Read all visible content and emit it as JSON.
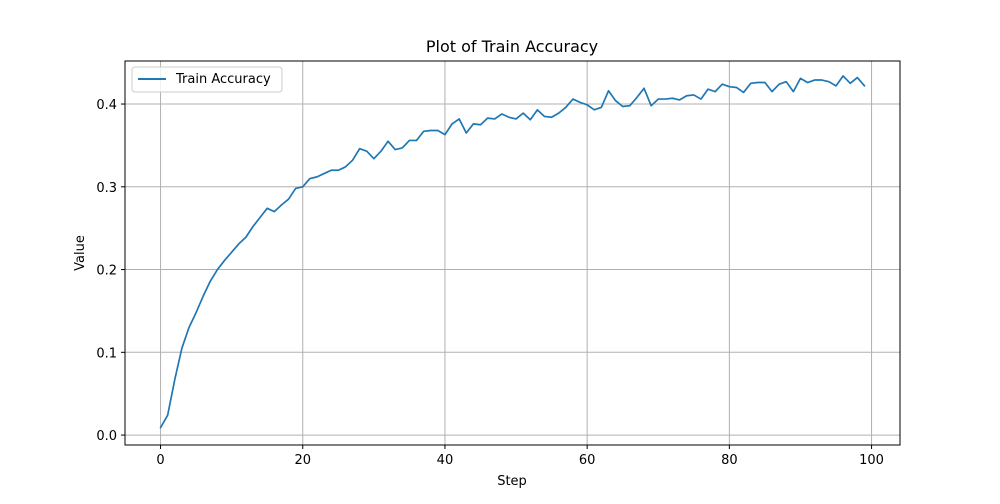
{
  "chart_data": {
    "type": "line",
    "title": "Plot of Train Accuracy",
    "xlabel": "Step",
    "ylabel": "Value",
    "xlim": [
      -5,
      104
    ],
    "ylim": [
      -0.012,
      0.452
    ],
    "xticks": [
      0,
      20,
      40,
      60,
      80,
      100
    ],
    "xtick_labels": [
      "0",
      "20",
      "40",
      "60",
      "80",
      "100"
    ],
    "yticks": [
      0.0,
      0.1,
      0.2,
      0.3,
      0.4
    ],
    "ytick_labels": [
      "0.0",
      "0.1",
      "0.2",
      "0.3",
      "0.4"
    ],
    "grid": true,
    "legend_position": "top-left",
    "series": [
      {
        "name": "Train Accuracy",
        "color": "#1f77b4",
        "x": [
          0,
          1,
          2,
          3,
          4,
          5,
          6,
          7,
          8,
          9,
          10,
          11,
          12,
          13,
          14,
          15,
          16,
          17,
          18,
          19,
          20,
          21,
          22,
          23,
          24,
          25,
          26,
          27,
          28,
          29,
          30,
          31,
          32,
          33,
          34,
          35,
          36,
          37,
          38,
          39,
          40,
          41,
          42,
          43,
          44,
          45,
          46,
          47,
          48,
          49,
          50,
          51,
          52,
          53,
          54,
          55,
          56,
          57,
          58,
          59,
          60,
          61,
          62,
          63,
          64,
          65,
          66,
          67,
          68,
          69,
          70,
          71,
          72,
          73,
          74,
          75,
          76,
          77,
          78,
          79,
          80,
          81,
          82,
          83,
          84,
          85,
          86,
          87,
          88,
          89,
          90,
          91,
          92,
          93,
          94,
          95,
          96,
          97,
          98,
          99
        ],
        "values": [
          0.009,
          0.024,
          0.067,
          0.105,
          0.13,
          0.148,
          0.168,
          0.186,
          0.2,
          0.211,
          0.221,
          0.231,
          0.239,
          0.252,
          0.263,
          0.274,
          0.27,
          0.278,
          0.285,
          0.298,
          0.3,
          0.31,
          0.312,
          0.316,
          0.32,
          0.32,
          0.324,
          0.332,
          0.346,
          0.343,
          0.334,
          0.343,
          0.355,
          0.345,
          0.347,
          0.356,
          0.356,
          0.367,
          0.368,
          0.368,
          0.363,
          0.376,
          0.382,
          0.365,
          0.376,
          0.375,
          0.383,
          0.382,
          0.388,
          0.384,
          0.382,
          0.389,
          0.381,
          0.393,
          0.385,
          0.384,
          0.389,
          0.396,
          0.406,
          0.402,
          0.399,
          0.393,
          0.396,
          0.416,
          0.404,
          0.397,
          0.398,
          0.408,
          0.419,
          0.398,
          0.406,
          0.406,
          0.407,
          0.405,
          0.41,
          0.411,
          0.406,
          0.418,
          0.415,
          0.424,
          0.421,
          0.42,
          0.414,
          0.425,
          0.426,
          0.426,
          0.415,
          0.424,
          0.427,
          0.415,
          0.431,
          0.426,
          0.429,
          0.429,
          0.427,
          0.422,
          0.434,
          0.425,
          0.432,
          0.422
        ]
      }
    ]
  }
}
